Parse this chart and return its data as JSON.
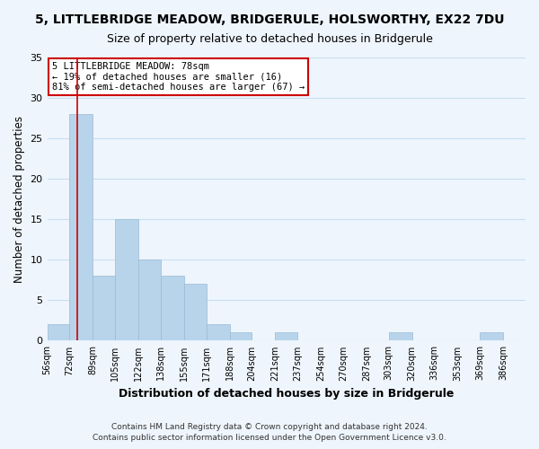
{
  "title": "5, LITTLEBRIDGE MEADOW, BRIDGERULE, HOLSWORTHY, EX22 7DU",
  "subtitle": "Size of property relative to detached houses in Bridgerule",
  "xlabel": "Distribution of detached houses by size in Bridgerule",
  "ylabel": "Number of detached properties",
  "bin_labels": [
    "56sqm",
    "72sqm",
    "89sqm",
    "105sqm",
    "122sqm",
    "138sqm",
    "155sqm",
    "171sqm",
    "188sqm",
    "204sqm",
    "221sqm",
    "237sqm",
    "254sqm",
    "270sqm",
    "287sqm",
    "303sqm",
    "320sqm",
    "336sqm",
    "353sqm",
    "369sqm",
    "386sqm"
  ],
  "bin_edges": [
    56,
    72,
    89,
    105,
    122,
    138,
    155,
    171,
    188,
    204,
    221,
    237,
    254,
    270,
    287,
    303,
    320,
    336,
    353,
    369,
    386
  ],
  "bar_heights": [
    2,
    28,
    8,
    15,
    10,
    8,
    7,
    2,
    1,
    0,
    1,
    0,
    0,
    0,
    0,
    1,
    0,
    0,
    0,
    1,
    0
  ],
  "bar_color": "#b8d4ea",
  "bar_edgecolor": "#9bbad8",
  "grid_color": "#c8dff0",
  "background_color": "#eef5fc",
  "property_size": 78,
  "vline_color": "#cc0000",
  "annotation_text": "5 LITTLEBRIDGE MEADOW: 78sqm\n← 19% of detached houses are smaller (16)\n81% of semi-detached houses are larger (67) →",
  "annotation_box_color": "#ffffff",
  "annotation_border_color": "#cc0000",
  "ylim": [
    0,
    35
  ],
  "yticks": [
    0,
    5,
    10,
    15,
    20,
    25,
    30,
    35
  ],
  "footer_line1": "Contains HM Land Registry data © Crown copyright and database right 2024.",
  "footer_line2": "Contains public sector information licensed under the Open Government Licence v3.0."
}
